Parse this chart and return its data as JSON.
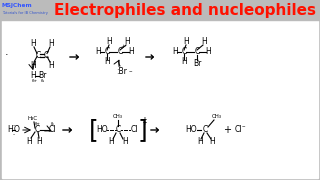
{
  "title": "Electrophiles and nucleophiles",
  "title_color": "#FF1100",
  "title_fontsize": 11,
  "bg_color": "#BBBBBB",
  "logo_text1": "MSJChem",
  "logo_text2": "Tutorials for IB Chemistry",
  "logo_color1": "#3355FF",
  "logo_color2": "#3355CC",
  "panel_bg": "#FFFFFF",
  "text_color": "#000000"
}
